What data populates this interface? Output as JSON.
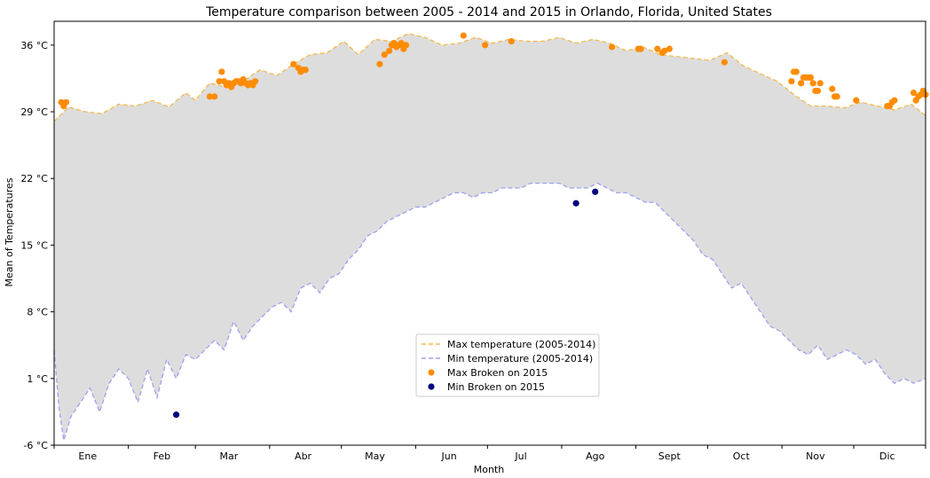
{
  "chart_data": {
    "type": "line",
    "title": "Temperature comparison between 2005 - 2014 and 2015 in Orlando, Florida, United States",
    "xlabel": "Month",
    "ylabel": "Mean of Temperatures",
    "xlim": [
      1,
      365
    ],
    "ylim": [
      -6,
      38.5
    ],
    "y_ticks": [
      -6,
      1,
      8,
      15,
      22,
      29,
      36
    ],
    "y_tick_labels": [
      "-6 °C",
      "1 °C",
      "8 °C",
      "15 °C",
      "22 °C",
      "29 °C",
      "36 °C"
    ],
    "month_labels": [
      "Ene",
      "Feb",
      "Mar",
      "Abr",
      "May",
      "Jun",
      "Jul",
      "Ago",
      "Sept",
      "Oct",
      "Nov",
      "Dic"
    ],
    "month_label_days": [
      15,
      46,
      74,
      105,
      135,
      166,
      196,
      227,
      258,
      288,
      319,
      349
    ],
    "month_boundaries": [
      1,
      32,
      60,
      91,
      121,
      152,
      182,
      213,
      244,
      274,
      305,
      335,
      365
    ],
    "grid": false,
    "fill_color": "#dddddd",
    "max_color": "#f5b94a",
    "min_color": "#9f9ff0",
    "legend_position": "lower-center",
    "legend": [
      {
        "label": "Max temperature (2005-2014)",
        "kind": "dashed",
        "color": "#f5b94a"
      },
      {
        "label": "Min temperature (2005-2014)",
        "kind": "dashed",
        "color": "#9f9ff0"
      },
      {
        "label": "Max Broken on 2015",
        "kind": "dot",
        "color": "#ff8c00"
      },
      {
        "label": "Min Broken on 2015",
        "kind": "dot",
        "color": "#000080"
      }
    ],
    "series": [
      {
        "name": "Max temperature (2005-2014)",
        "x": [
          1,
          7,
          14,
          21,
          28,
          35,
          42,
          49,
          56,
          60,
          66,
          73,
          80,
          87,
          94,
          101,
          108,
          115,
          122,
          128,
          135,
          142,
          149,
          156,
          163,
          170,
          177,
          184,
          191,
          198,
          205,
          212,
          219,
          226,
          233,
          240,
          247,
          254,
          261,
          268,
          275,
          282,
          289,
          296,
          303,
          310,
          317,
          324,
          331,
          338,
          345,
          352,
          359,
          365
        ],
        "values": [
          28.0,
          29.5,
          29.0,
          28.8,
          29.8,
          29.6,
          30.2,
          29.5,
          31.0,
          30.2,
          32.0,
          31.6,
          32.2,
          33.4,
          32.8,
          34.0,
          35.0,
          35.2,
          36.4,
          35.0,
          36.6,
          36.4,
          37.2,
          36.8,
          36.0,
          36.2,
          36.8,
          36.2,
          36.6,
          36.4,
          36.4,
          36.8,
          36.2,
          36.6,
          36.2,
          35.4,
          35.8,
          35.0,
          34.8,
          34.6,
          34.4,
          35.2,
          33.8,
          33.0,
          32.2,
          30.8,
          29.6,
          29.6,
          29.4,
          30.0,
          29.6,
          29.2,
          29.8,
          28.6
        ]
      },
      {
        "name": "Min temperature (2005-2014)",
        "x": [
          1,
          3,
          5,
          8,
          12,
          16,
          20,
          24,
          28,
          32,
          36,
          40,
          44,
          48,
          52,
          56,
          60,
          64,
          68,
          72,
          76,
          80,
          84,
          88,
          92,
          96,
          100,
          104,
          108,
          112,
          116,
          120,
          124,
          128,
          132,
          136,
          140,
          144,
          148,
          152,
          156,
          160,
          164,
          168,
          172,
          176,
          180,
          184,
          188,
          192,
          196,
          200,
          204,
          208,
          212,
          216,
          220,
          224,
          228,
          232,
          236,
          240,
          244,
          248,
          252,
          256,
          260,
          264,
          268,
          272,
          276,
          280,
          284,
          288,
          292,
          296,
          300,
          304,
          308,
          312,
          316,
          320,
          324,
          328,
          332,
          336,
          340,
          344,
          348,
          352,
          356,
          360,
          365
        ],
        "values": [
          4.0,
          -2.0,
          -5.5,
          -3.0,
          -1.5,
          0.0,
          -2.5,
          0.5,
          2.0,
          1.0,
          -1.5,
          2.0,
          -1.0,
          3.0,
          1.0,
          3.5,
          3.0,
          4.0,
          5.0,
          4.0,
          7.0,
          5.0,
          6.5,
          7.5,
          8.5,
          9.0,
          8.0,
          10.5,
          11.0,
          10.0,
          11.5,
          12.0,
          13.5,
          14.5,
          16.0,
          16.5,
          17.5,
          18.0,
          18.5,
          19.0,
          19.0,
          19.5,
          20.0,
          20.5,
          20.5,
          20.0,
          20.5,
          20.5,
          21.0,
          21.0,
          21.0,
          21.5,
          21.5,
          21.5,
          21.5,
          21.0,
          21.0,
          21.0,
          21.5,
          21.0,
          20.5,
          20.5,
          20.0,
          19.5,
          19.5,
          18.5,
          17.5,
          16.5,
          15.5,
          14.0,
          13.5,
          12.0,
          10.5,
          11.0,
          9.5,
          8.0,
          6.5,
          6.0,
          5.0,
          4.0,
          3.5,
          4.5,
          3.0,
          3.5,
          4.0,
          3.5,
          2.5,
          3.0,
          1.5,
          0.5,
          1.0,
          0.5,
          1.0
        ]
      },
      {
        "name": "Max Broken on 2015",
        "x": [
          4,
          5,
          6,
          66,
          68,
          70,
          71,
          72,
          73,
          74,
          75,
          76,
          77,
          78,
          79,
          80,
          81,
          82,
          83,
          84,
          85,
          101,
          103,
          104,
          105,
          106,
          137,
          139,
          141,
          142,
          143,
          144,
          145,
          146,
          147,
          148,
          172,
          181,
          192,
          234,
          245,
          246,
          253,
          255,
          256,
          258,
          281,
          309,
          310,
          311,
          313,
          314,
          315,
          316,
          317,
          318,
          319,
          320,
          321,
          326,
          327,
          328,
          336,
          349,
          350,
          351,
          352,
          360,
          361,
          362,
          363,
          364,
          365
        ],
        "values": [
          30.0,
          29.6,
          30.0,
          30.6,
          30.6,
          32.2,
          33.2,
          32.2,
          31.8,
          32.0,
          31.6,
          32.0,
          32.2,
          32.2,
          32.0,
          32.4,
          32.0,
          31.8,
          32.0,
          31.8,
          32.2,
          34.0,
          33.6,
          33.2,
          33.4,
          33.4,
          34.0,
          35.0,
          35.4,
          36.0,
          36.2,
          35.8,
          36.0,
          36.2,
          35.6,
          36.0,
          37.0,
          36.0,
          36.4,
          35.8,
          35.6,
          35.6,
          35.6,
          35.2,
          35.4,
          35.6,
          34.2,
          32.2,
          33.2,
          33.2,
          32.0,
          32.6,
          32.6,
          32.6,
          32.6,
          32.0,
          31.2,
          31.2,
          32.0,
          31.4,
          30.6,
          30.6,
          30.2,
          29.6,
          29.6,
          30.0,
          30.2,
          31.0,
          30.2,
          30.6,
          30.8,
          31.2,
          30.8
        ]
      },
      {
        "name": "Min Broken on 2015",
        "x": [
          52,
          219,
          227
        ],
        "values": [
          -2.8,
          19.4,
          20.6
        ]
      }
    ]
  }
}
